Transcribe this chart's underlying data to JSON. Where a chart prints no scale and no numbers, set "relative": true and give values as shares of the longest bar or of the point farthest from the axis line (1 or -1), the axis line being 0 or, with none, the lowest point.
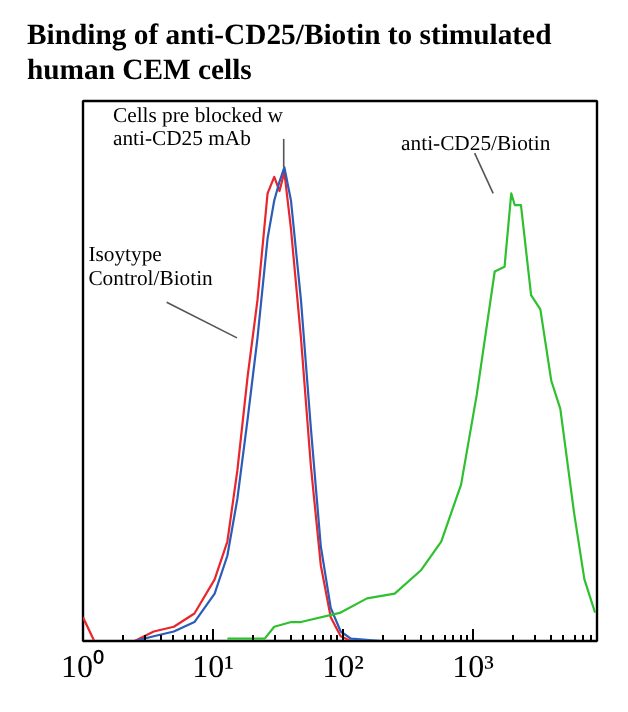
{
  "chart_data": {
    "type": "line",
    "title": "Binding of anti-CD25/Biotin to stimulated human CEM cells",
    "relative": true,
    "log": "x",
    "xlim": [
      1,
      9000
    ],
    "xticks": [
      {
        "value": 1,
        "label": "10⁰"
      },
      {
        "value": 10,
        "label": "10¹"
      },
      {
        "value": 100,
        "label": "10²"
      },
      {
        "value": 1000,
        "label": "10³"
      }
    ],
    "grid": false,
    "marker": "none",
    "line_style": "solid",
    "series": [
      {
        "name": "Isoytype\nControl/Biotin",
        "color": "#e8262b",
        "x": [
          1.0,
          1.22,
          2.5,
          3.5,
          5.0,
          7.2,
          10.3,
          12.9,
          15.4,
          18.5,
          22,
          26.3,
          29.6,
          32.5,
          35.4,
          39.8,
          47.5,
          56.6,
          67.5,
          80.5,
          96,
          115
        ],
        "values": [
          0.05,
          0,
          0,
          0.02,
          0.03,
          0.058,
          0.13,
          0.21,
          0.36,
          0.56,
          0.72,
          0.945,
          0.98,
          0.95,
          0.99,
          0.87,
          0.64,
          0.37,
          0.16,
          0.05,
          0.01,
          0
        ]
      },
      {
        "name": "Cells pre blocked w\nanti-CD25 mAb",
        "color": "#2a5cb8",
        "x": [
          1.0,
          2.5,
          3.5,
          5.0,
          7.2,
          10.3,
          12.9,
          15.4,
          18.5,
          22,
          26.3,
          29.6,
          32.5,
          35.4,
          39.8,
          47.5,
          56.6,
          67.5,
          80.5,
          96,
          115,
          200
        ],
        "values": [
          0,
          0,
          0.01,
          0.02,
          0.04,
          0.1,
          0.18,
          0.3,
          0.47,
          0.64,
          0.85,
          0.93,
          0.97,
          1.0,
          0.93,
          0.72,
          0.45,
          0.2,
          0.07,
          0.02,
          0.005,
          0
        ]
      },
      {
        "name": "anti-CD25/Biotin",
        "color": "#2ec02e",
        "x": [
          12.9,
          25,
          29.6,
          40,
          47.5,
          96,
          153,
          250,
          400,
          570,
          810,
          1070,
          1470,
          1750,
          1970,
          2100,
          2340,
          2800,
          3300,
          4000,
          4700,
          6000,
          7200,
          8700
        ],
        "values": [
          0.005,
          0.005,
          0.03,
          0.04,
          0.04,
          0.06,
          0.09,
          0.1,
          0.15,
          0.21,
          0.33,
          0.52,
          0.78,
          0.79,
          0.945,
          0.92,
          0.92,
          0.73,
          0.7,
          0.55,
          0.49,
          0.27,
          0.13,
          0.06
        ]
      }
    ]
  }
}
